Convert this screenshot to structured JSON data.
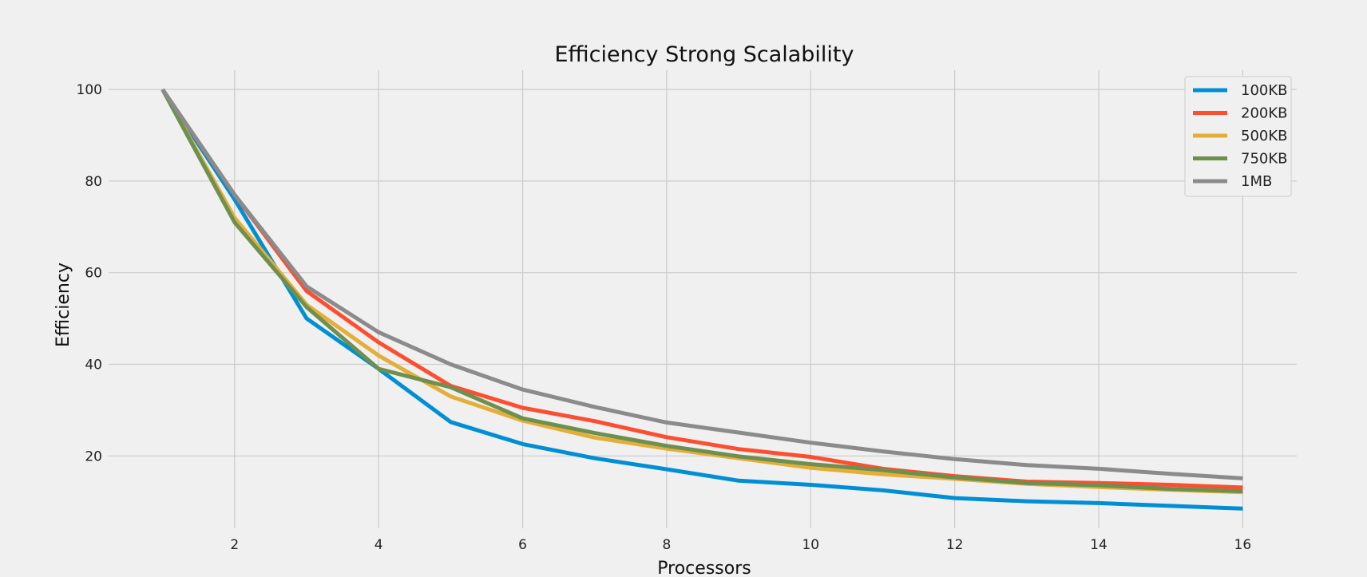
{
  "chart_data": {
    "type": "line",
    "title": "Efficiency Strong Scalability",
    "xlabel": "Processors",
    "ylabel": "Efficiency",
    "x": [
      1,
      2,
      3,
      4,
      5,
      6,
      7,
      8,
      9,
      10,
      11,
      12,
      13,
      14,
      15,
      16
    ],
    "xlim": [
      0.25,
      16.75
    ],
    "ylim": [
      4.2,
      104.2
    ],
    "xticks": [
      2,
      4,
      6,
      8,
      10,
      12,
      14,
      16
    ],
    "yticks": [
      20,
      40,
      60,
      80,
      100
    ],
    "grid": true,
    "legend_position": "top-right",
    "series": [
      {
        "name": "100KB",
        "color": "#008fd5",
        "values": [
          100,
          76,
          50,
          39,
          27.4,
          22.6,
          19.5,
          17.1,
          14.6,
          13.7,
          12.5,
          10.8,
          10.1,
          9.7,
          9.1,
          8.5
        ]
      },
      {
        "name": "200KB",
        "color": "#fc4f30",
        "values": [
          100,
          77,
          56,
          44.8,
          35.3,
          30.5,
          27.6,
          24.1,
          21.5,
          19.8,
          17.2,
          15.6,
          14.4,
          14.1,
          13.7,
          13.1
        ]
      },
      {
        "name": "500KB",
        "color": "#e5ae38",
        "values": [
          100,
          72,
          53,
          41.9,
          33,
          27.7,
          24,
          21.6,
          19.5,
          17.4,
          16,
          15,
          13.9,
          13.2,
          12.6,
          12.1
        ]
      },
      {
        "name": "750KB",
        "color": "#6d904f",
        "values": [
          100,
          71,
          52.5,
          39,
          35,
          28.2,
          25,
          22.2,
          19.9,
          18.2,
          16.9,
          15.3,
          14.1,
          13.6,
          12.8,
          12.3
        ]
      },
      {
        "name": "1MB",
        "color": "#8b8b8b",
        "values": [
          100,
          77,
          57,
          47,
          40,
          34.5,
          30.7,
          27.3,
          25.1,
          22.9,
          21,
          19.3,
          18,
          17.2,
          16.1,
          15.1
        ]
      }
    ]
  }
}
